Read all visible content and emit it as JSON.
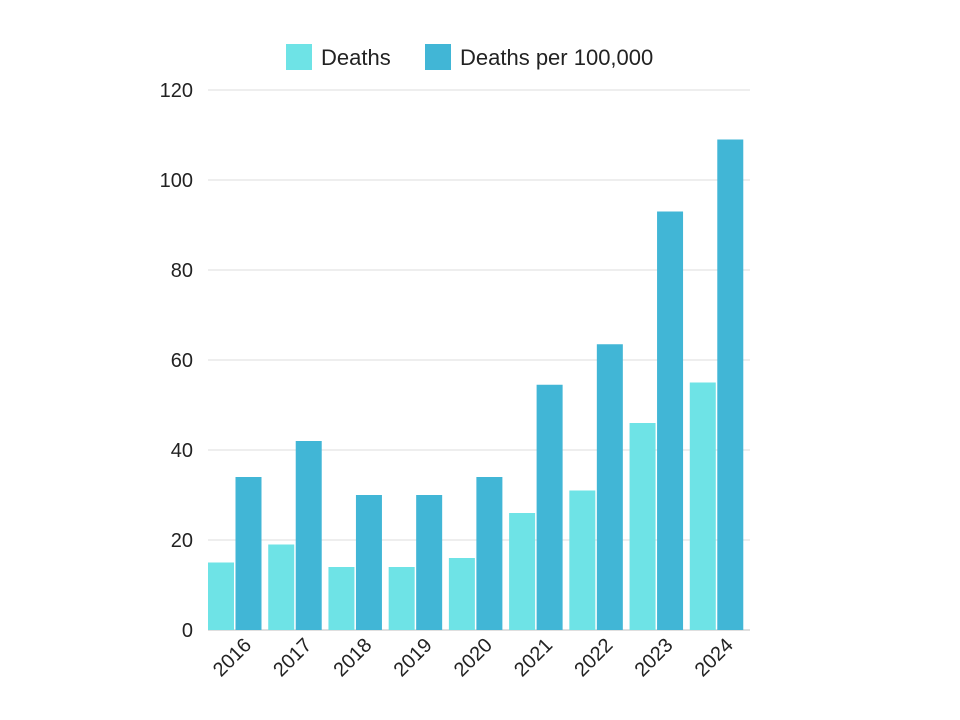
{
  "chart_data": {
    "type": "bar",
    "title": "",
    "xlabel": "",
    "ylabel": "",
    "categories": [
      "2016",
      "2017",
      "2018",
      "2019",
      "2020",
      "2021",
      "2022",
      "2023",
      "2024"
    ],
    "series": [
      {
        "name": "Deaths",
        "color": "#6ee3e6",
        "values": [
          15,
          19,
          14,
          14,
          16,
          26,
          31,
          46,
          55
        ]
      },
      {
        "name": "Deaths per 100,000",
        "color": "#41b6d6",
        "values": [
          34,
          42,
          30,
          30,
          34,
          54.5,
          63.5,
          93,
          109
        ]
      }
    ],
    "ylim": [
      0,
      120
    ],
    "yticks": [
      0,
      20,
      40,
      60,
      80,
      100,
      120
    ],
    "grid": true,
    "legend_position": "top-center"
  }
}
